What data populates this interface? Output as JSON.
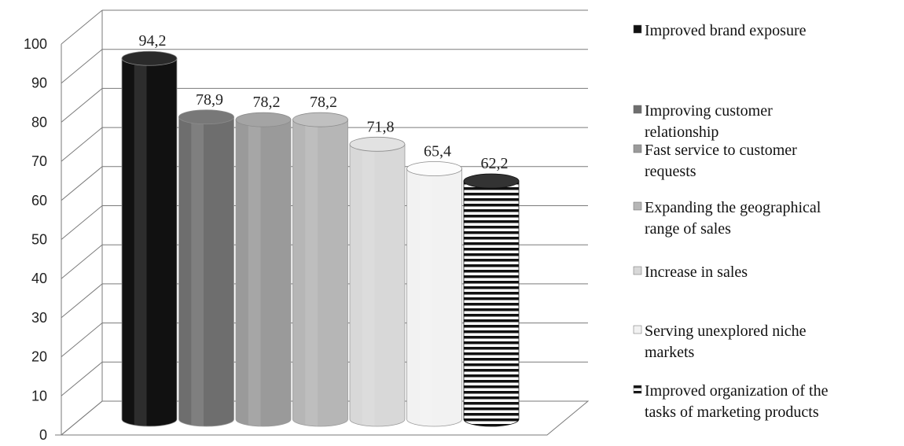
{
  "chart_data": {
    "type": "bar",
    "title": "",
    "xlabel": "",
    "ylabel": "",
    "ylim": [
      0,
      100
    ],
    "yticks": [
      0,
      10,
      20,
      30,
      40,
      50,
      60,
      70,
      80,
      90,
      100
    ],
    "grid": true,
    "three_d": true,
    "bar_shape": "cylinder",
    "legend_position": "right",
    "categories": [
      "Improved brand exposure",
      "Improving customer relationship",
      "Fast service to customer requests",
      "Expanding the geographical range of sales",
      "Increase in sales",
      "Serving unexplored niche markets",
      "Improved organization of the tasks of marketing products"
    ],
    "values": [
      94.2,
      78.9,
      78.2,
      78.2,
      71.8,
      65.4,
      62.2
    ],
    "value_labels": [
      "94,2",
      "78,9",
      "78,2",
      "78,2",
      "71,8",
      "65,4",
      "62,2"
    ],
    "legend": [
      [
        "Improved brand exposure"
      ],
      [
        "Improving customer",
        "relationship"
      ],
      [
        "Fast service to customer",
        "requests"
      ],
      [
        "Expanding the geographical",
        "range of sales"
      ],
      [
        "Increase in sales"
      ],
      [
        "Serving unexplored niche",
        "markets"
      ],
      [
        "Improved organization of the",
        "tasks of marketing products"
      ]
    ],
    "colors": [
      "#111111",
      "#6e6e6e",
      "#9a9a9a",
      "#b6b6b6",
      "#d8d8d8",
      "#f2f2f2",
      "striped"
    ]
  }
}
